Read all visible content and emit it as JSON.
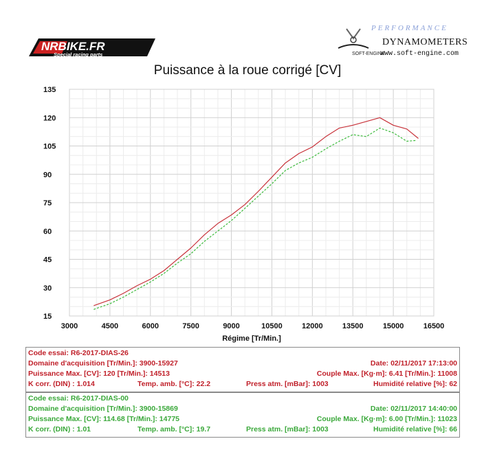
{
  "header": {
    "left_logo_text": "NRBIKE.FR",
    "left_logo_sub": "Special racing parts",
    "right_brand_faded": "PERFORMANCE",
    "right_brand": "DYNAMOMETERS",
    "right_engine_label": "SOFT-ENGINE",
    "right_url": "www.soft-engine.com"
  },
  "chart_data": {
    "type": "line",
    "title": "Puissance à la roue corrigé [CV]",
    "xlabel": "Régime [Tr/Min.]",
    "ylabel": "",
    "xlim": [
      3000,
      16500
    ],
    "ylim": [
      15,
      135
    ],
    "x_ticks": [
      3000,
      4500,
      6000,
      7500,
      9000,
      10500,
      12000,
      13500,
      15000,
      16500
    ],
    "y_ticks": [
      15,
      30,
      45,
      60,
      75,
      90,
      105,
      120,
      135
    ],
    "grid": true,
    "colors": {
      "red": "#c8323a",
      "green": "#3cba3c",
      "grid": "#d8d8d8"
    },
    "series": [
      {
        "id": "R6-2017-DIAS-26",
        "color": "#c8323a",
        "style": "solid",
        "x": [
          3900,
          4500,
          5000,
          5500,
          6000,
          6500,
          7000,
          7500,
          8000,
          8500,
          9000,
          9500,
          10000,
          10500,
          11000,
          11500,
          12000,
          12500,
          13000,
          13500,
          14000,
          14500,
          15000,
          15500,
          15927
        ],
        "values": [
          20.5,
          23.5,
          27,
          31,
          34.5,
          39,
          45,
          51,
          58,
          64,
          68.5,
          74,
          81,
          88.5,
          96,
          101,
          104.5,
          110,
          114.5,
          116,
          118,
          120,
          116,
          114,
          109
        ]
      },
      {
        "id": "R6-2017-DIAS-00",
        "color": "#3cba3c",
        "style": "dashed",
        "x": [
          3900,
          4500,
          5000,
          5500,
          6000,
          6500,
          7000,
          7500,
          8000,
          8500,
          9000,
          9500,
          10000,
          10500,
          11000,
          11500,
          12000,
          12500,
          13000,
          13500,
          14000,
          14500,
          15000,
          15500,
          15869
        ],
        "values": [
          18.5,
          21.5,
          25,
          29,
          33,
          37.5,
          43,
          48,
          54.5,
          60,
          65.5,
          72,
          78.5,
          85,
          92,
          96,
          99,
          103.5,
          107.5,
          111,
          110,
          114.5,
          112,
          107.5,
          108
        ]
      }
    ]
  },
  "info_red": {
    "line1_left": "Code essai: R6-2017-DIAS-26",
    "line2_left": "Domaine d'acquisition [Tr/Min.]: 3900-15927",
    "line2_right": "Date: 02/11/2017    17:13:00",
    "line3_left": "Puissance Max. [CV]: 120   [Tr/Min.]: 14513",
    "line3_right": "Couple Max. [Kg·m]: 6.41   [Tr/Min.]: 11008",
    "line4_a": "K corr. (DIN) : 1.014",
    "line4_b": "Temp. amb. [°C]: 22.2",
    "line4_c": "Press atm. [mBar]: 1003",
    "line4_d": "Humidité relative [%]: 62"
  },
  "info_green": {
    "line1_left": "Code essai: R6-2017-DIAS-00",
    "line2_left": "Domaine d'acquisition [Tr/Min.]: 3900-15869",
    "line2_right": "Date: 02/11/2017    14:40:00",
    "line3_left": "Puissance Max. [CV]: 114.68   [Tr/Min.]: 14775",
    "line3_right": "Couple Max. [Kg·m]: 6.00   [Tr/Min.]: 11023",
    "line4_a": "K corr. (DIN) : 1.01",
    "line4_b": "Temp. amb. [°C]: 19.7",
    "line4_c": "Press atm. [mBar]: 1003",
    "line4_d": "Humidité relative [%]: 66"
  }
}
